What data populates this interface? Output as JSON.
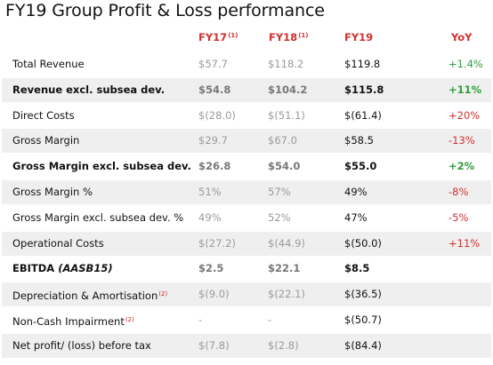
{
  "title": "FY19 Group Profit & Loss performance",
  "headers": {
    "fy17": "FY17",
    "fy17_note": "(1)",
    "fy18": "FY18",
    "fy18_note": "(1)",
    "fy19": "FY19",
    "yoy": "YoY"
  },
  "rows": [
    {
      "label": "Total Revenue",
      "fy17": "$57.7",
      "fy18": "$118.2",
      "fy19": "$119.8",
      "yoy": "+1.4%",
      "yoy_trend": "positive",
      "bold": false
    },
    {
      "label": "Revenue excl. subsea dev.",
      "fy17": "$54.8",
      "fy18": "$104.2",
      "fy19": "$115.8",
      "yoy": "+11%",
      "yoy_trend": "positive",
      "bold": true
    },
    {
      "label": "Direct Costs",
      "fy17": "$(28.0)",
      "fy18": "$(51.1)",
      "fy19": "$(61.4)",
      "yoy": "+20%",
      "yoy_trend": "negative",
      "bold": false
    },
    {
      "label": "Gross Margin",
      "fy17": "$29.7",
      "fy18": "$67.0",
      "fy19": "$58.5",
      "yoy": "-13%",
      "yoy_trend": "negative",
      "bold": false
    },
    {
      "label": "Gross Margin excl. subsea dev.",
      "fy17": "$26.8",
      "fy18": "$54.0",
      "fy19": "$55.0",
      "yoy": "+2%",
      "yoy_trend": "positive",
      "bold": true
    },
    {
      "label": "Gross Margin %",
      "fy17": "51%",
      "fy18": "57%",
      "fy19": "49%",
      "yoy": "-8%",
      "yoy_trend": "negative",
      "bold": false
    },
    {
      "label": "Gross Margin excl. subsea dev. %",
      "fy17": "49%",
      "fy18": "52%",
      "fy19": "47%",
      "yoy": "-5%",
      "yoy_trend": "negative",
      "bold": false
    },
    {
      "label": "Operational Costs",
      "fy17": "$(27.2)",
      "fy18": "$(44.9)",
      "fy19": "$(50.0)",
      "yoy": "+11%",
      "yoy_trend": "negative",
      "bold": false
    },
    {
      "label": "EBITDA",
      "label_suffix": "(AASB15)",
      "fy17": "$2.5",
      "fy18": "$22.1",
      "fy19": "$8.5",
      "yoy": "",
      "yoy_trend": "none",
      "bold": true
    },
    {
      "label": "Depreciation & Amortisation",
      "label_note": "(2)",
      "fy17": "$(9.0)",
      "fy18": "$(22.1)",
      "fy19": "$(36.5)",
      "yoy": "",
      "yoy_trend": "none",
      "bold": false
    },
    {
      "label": "Non-Cash Impairment",
      "label_note": "(2)",
      "fy17": "-",
      "fy18": "-",
      "fy19": "$(50.7)",
      "yoy": "",
      "yoy_trend": "none",
      "bold": false
    },
    {
      "label": "Net profit/ (loss) before tax",
      "fy17": "$(7.8)",
      "fy18": "$(2.8)",
      "fy19": "$(84.4)",
      "yoy": "",
      "yoy_trend": "none",
      "bold": false
    }
  ],
  "colors": {
    "header_red": "#d32f2f",
    "positive_green": "#2e9e3a",
    "negative_red": "#d32f2f",
    "prior_year_grey": "#9a9a9a",
    "row_shade": "#efefef"
  }
}
